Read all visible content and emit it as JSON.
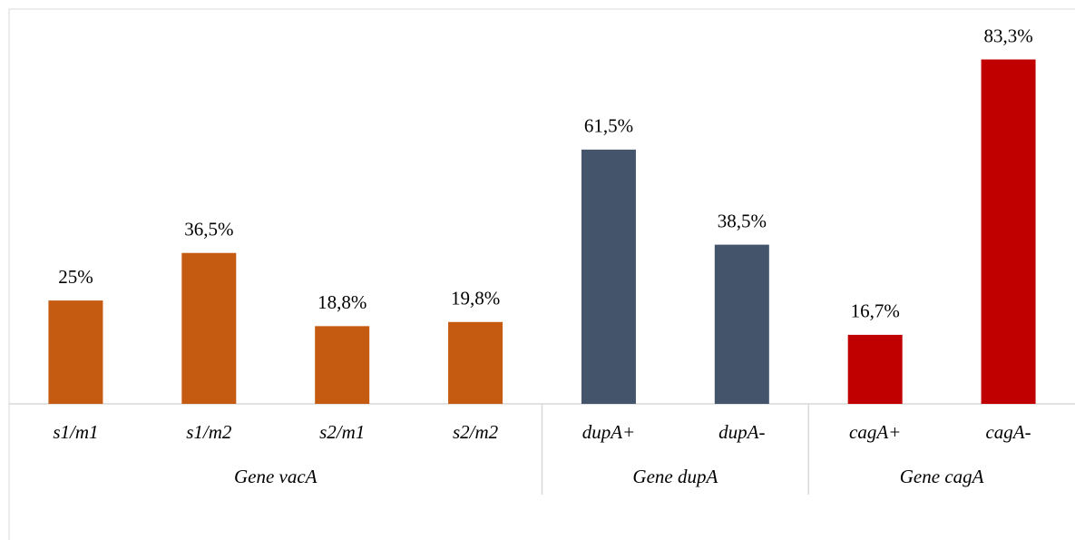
{
  "chart_data": {
    "type": "bar",
    "ylim": [
      0,
      90
    ],
    "groups": [
      {
        "name": "Gene vacA",
        "color": "#c55a11",
        "categories": [
          "s1/m1",
          "s1/m2",
          "s2/m1",
          "s2/m2"
        ],
        "values": [
          25,
          36.5,
          18.8,
          19.8
        ],
        "value_labels": [
          "25%",
          "36,5%",
          "18,8%",
          "19,8%"
        ]
      },
      {
        "name": "Gene dupA",
        "color": "#44546a",
        "categories": [
          "dupA+",
          "dupA-"
        ],
        "values": [
          61.5,
          38.5
        ],
        "value_labels": [
          "61,5%",
          "38,5%"
        ]
      },
      {
        "name": "Gene cagA",
        "color": "#c00000",
        "categories": [
          "cagA+",
          "cagA-"
        ],
        "values": [
          16.7,
          83.3
        ],
        "value_labels": [
          "16,7%",
          "83,3%"
        ]
      }
    ]
  }
}
